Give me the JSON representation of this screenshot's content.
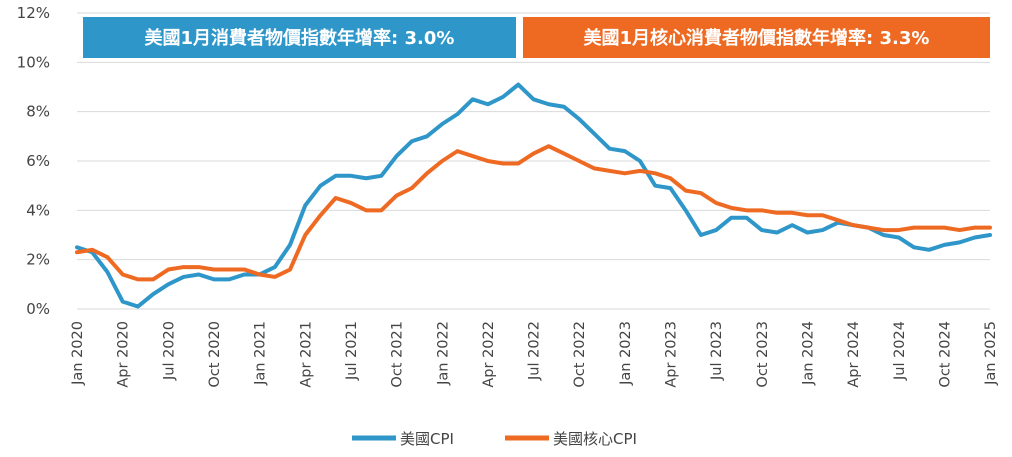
{
  "colors": {
    "cpi": "#2e96c9",
    "core": "#ee6a22",
    "grid": "#d9d9d9",
    "text": "#444444"
  },
  "banners": {
    "cpi": "美國1月消費者物價指數年增率: 3.0%",
    "core": "美國1月核心消費者物價指數年增率: 3.3%"
  },
  "legend": {
    "cpi": "美國CPI",
    "core": "美國核心CPI"
  },
  "chart_data": {
    "type": "line",
    "title": "",
    "xlabel": "",
    "ylabel": "",
    "ylim": [
      0,
      12
    ],
    "yticks": [
      "0%",
      "2%",
      "4%",
      "6%",
      "8%",
      "10%",
      "12%"
    ],
    "xtick_labels": [
      "Jan 2020",
      "Apr 2020",
      "Jul 2020",
      "Oct 2020",
      "Jan 2021",
      "Apr 2021",
      "Jul 2021",
      "Oct 2021",
      "Jan 2022",
      "Apr 2022",
      "Jul 2022",
      "Oct 2022",
      "Jan 2023",
      "Apr 2023",
      "Jul 2023",
      "Oct 2023",
      "Jan 2024",
      "Apr 2024",
      "Jul 2024",
      "Oct 2024",
      "Jan 2025"
    ],
    "grid": true,
    "legend_position": "bottom",
    "series": [
      {
        "name": "美國CPI",
        "values": [
          2.5,
          2.3,
          1.5,
          0.3,
          0.1,
          0.6,
          1.0,
          1.3,
          1.4,
          1.2,
          1.2,
          1.4,
          1.4,
          1.7,
          2.6,
          4.2,
          5.0,
          5.4,
          5.4,
          5.3,
          5.4,
          6.2,
          6.8,
          7.0,
          7.5,
          7.9,
          8.5,
          8.3,
          8.6,
          9.1,
          8.5,
          8.3,
          8.2,
          7.7,
          7.1,
          6.5,
          6.4,
          6.0,
          5.0,
          4.9,
          4.0,
          3.0,
          3.2,
          3.7,
          3.7,
          3.2,
          3.1,
          3.4,
          3.1,
          3.2,
          3.5,
          3.4,
          3.3,
          3.0,
          2.9,
          2.5,
          2.4,
          2.6,
          2.7,
          2.9,
          3.0
        ]
      },
      {
        "name": "美國核心CPI",
        "values": [
          2.3,
          2.4,
          2.1,
          1.4,
          1.2,
          1.2,
          1.6,
          1.7,
          1.7,
          1.6,
          1.6,
          1.6,
          1.4,
          1.3,
          1.6,
          3.0,
          3.8,
          4.5,
          4.3,
          4.0,
          4.0,
          4.6,
          4.9,
          5.5,
          6.0,
          6.4,
          6.2,
          6.0,
          5.9,
          5.9,
          6.3,
          6.6,
          6.3,
          6.0,
          5.7,
          5.6,
          5.5,
          5.6,
          5.5,
          5.3,
          4.8,
          4.7,
          4.3,
          4.1,
          4.0,
          4.0,
          3.9,
          3.9,
          3.8,
          3.8,
          3.6,
          3.4,
          3.3,
          3.2,
          3.2,
          3.3,
          3.3,
          3.3,
          3.2,
          3.3,
          3.3
        ]
      }
    ]
  }
}
